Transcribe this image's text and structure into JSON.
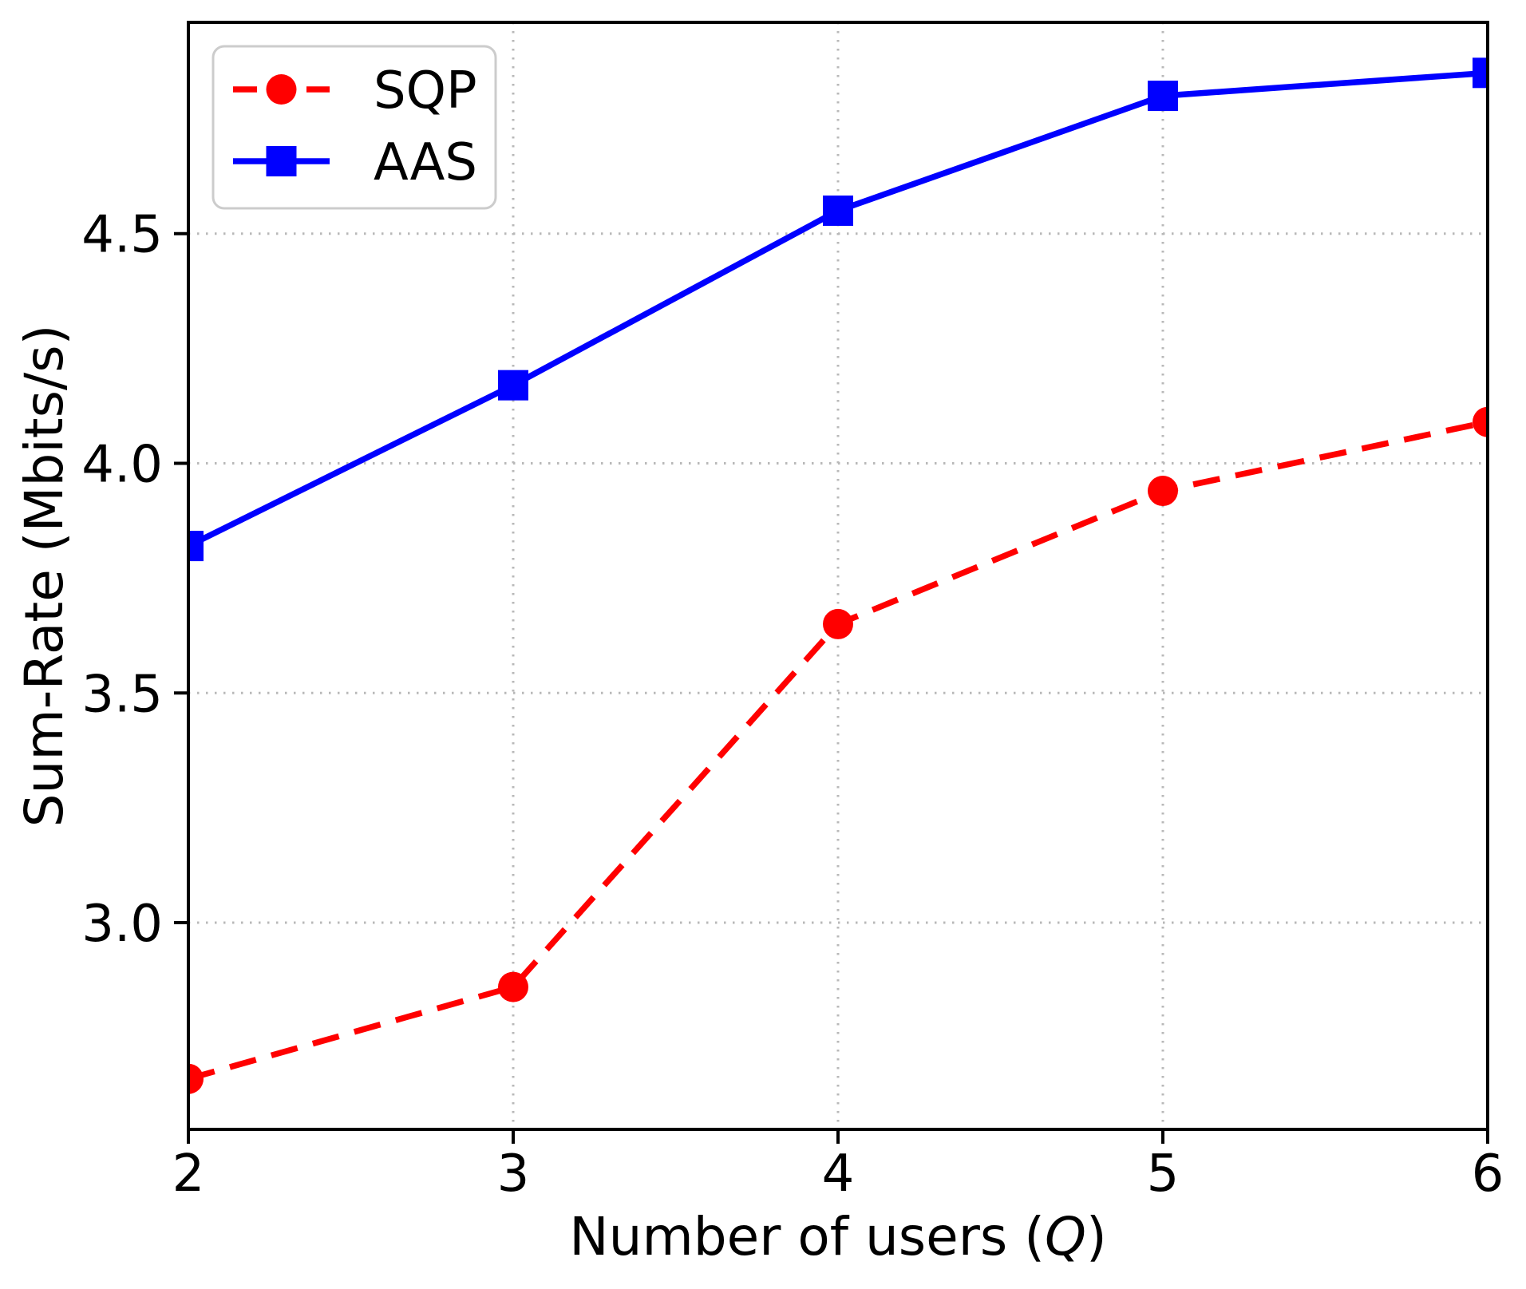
{
  "chart_data": {
    "type": "line",
    "x": [
      2,
      3,
      4,
      5,
      6
    ],
    "series": [
      {
        "name": "SQP",
        "values": [
          2.66,
          2.86,
          3.65,
          3.94,
          4.09
        ],
        "color": "#ff0000",
        "line_style": "dashed",
        "marker": "circle"
      },
      {
        "name": "AAS",
        "values": [
          3.82,
          4.17,
          4.55,
          4.8,
          4.85
        ],
        "color": "#0000ff",
        "line_style": "solid",
        "marker": "square"
      }
    ],
    "xlabel": "Number of users (Q)",
    "xlabel_parts": [
      {
        "text": "Number of users (",
        "italic": false
      },
      {
        "text": "Q",
        "italic": true
      },
      {
        "text": ")",
        "italic": false
      }
    ],
    "ylabel": "Sum-Rate (Mbits/s)",
    "xlim": [
      2,
      6
    ],
    "ylim": [
      2.55,
      4.96
    ],
    "x_ticks": [
      2,
      3,
      4,
      5,
      6
    ],
    "x_tick_labels": [
      "2",
      "3",
      "4",
      "5",
      "6"
    ],
    "y_ticks": [
      3.0,
      3.5,
      4.0,
      4.5
    ],
    "y_tick_labels": [
      "3.0",
      "3.5",
      "4.0",
      "4.5"
    ],
    "grid": true,
    "grid_style": "dotted",
    "grid_color": "#b8b8b8",
    "axis_color": "#000000",
    "background_color": "#ffffff",
    "legend": {
      "position": "upper left",
      "border_color": "#cccccc",
      "background_color": "#ffffff"
    }
  }
}
